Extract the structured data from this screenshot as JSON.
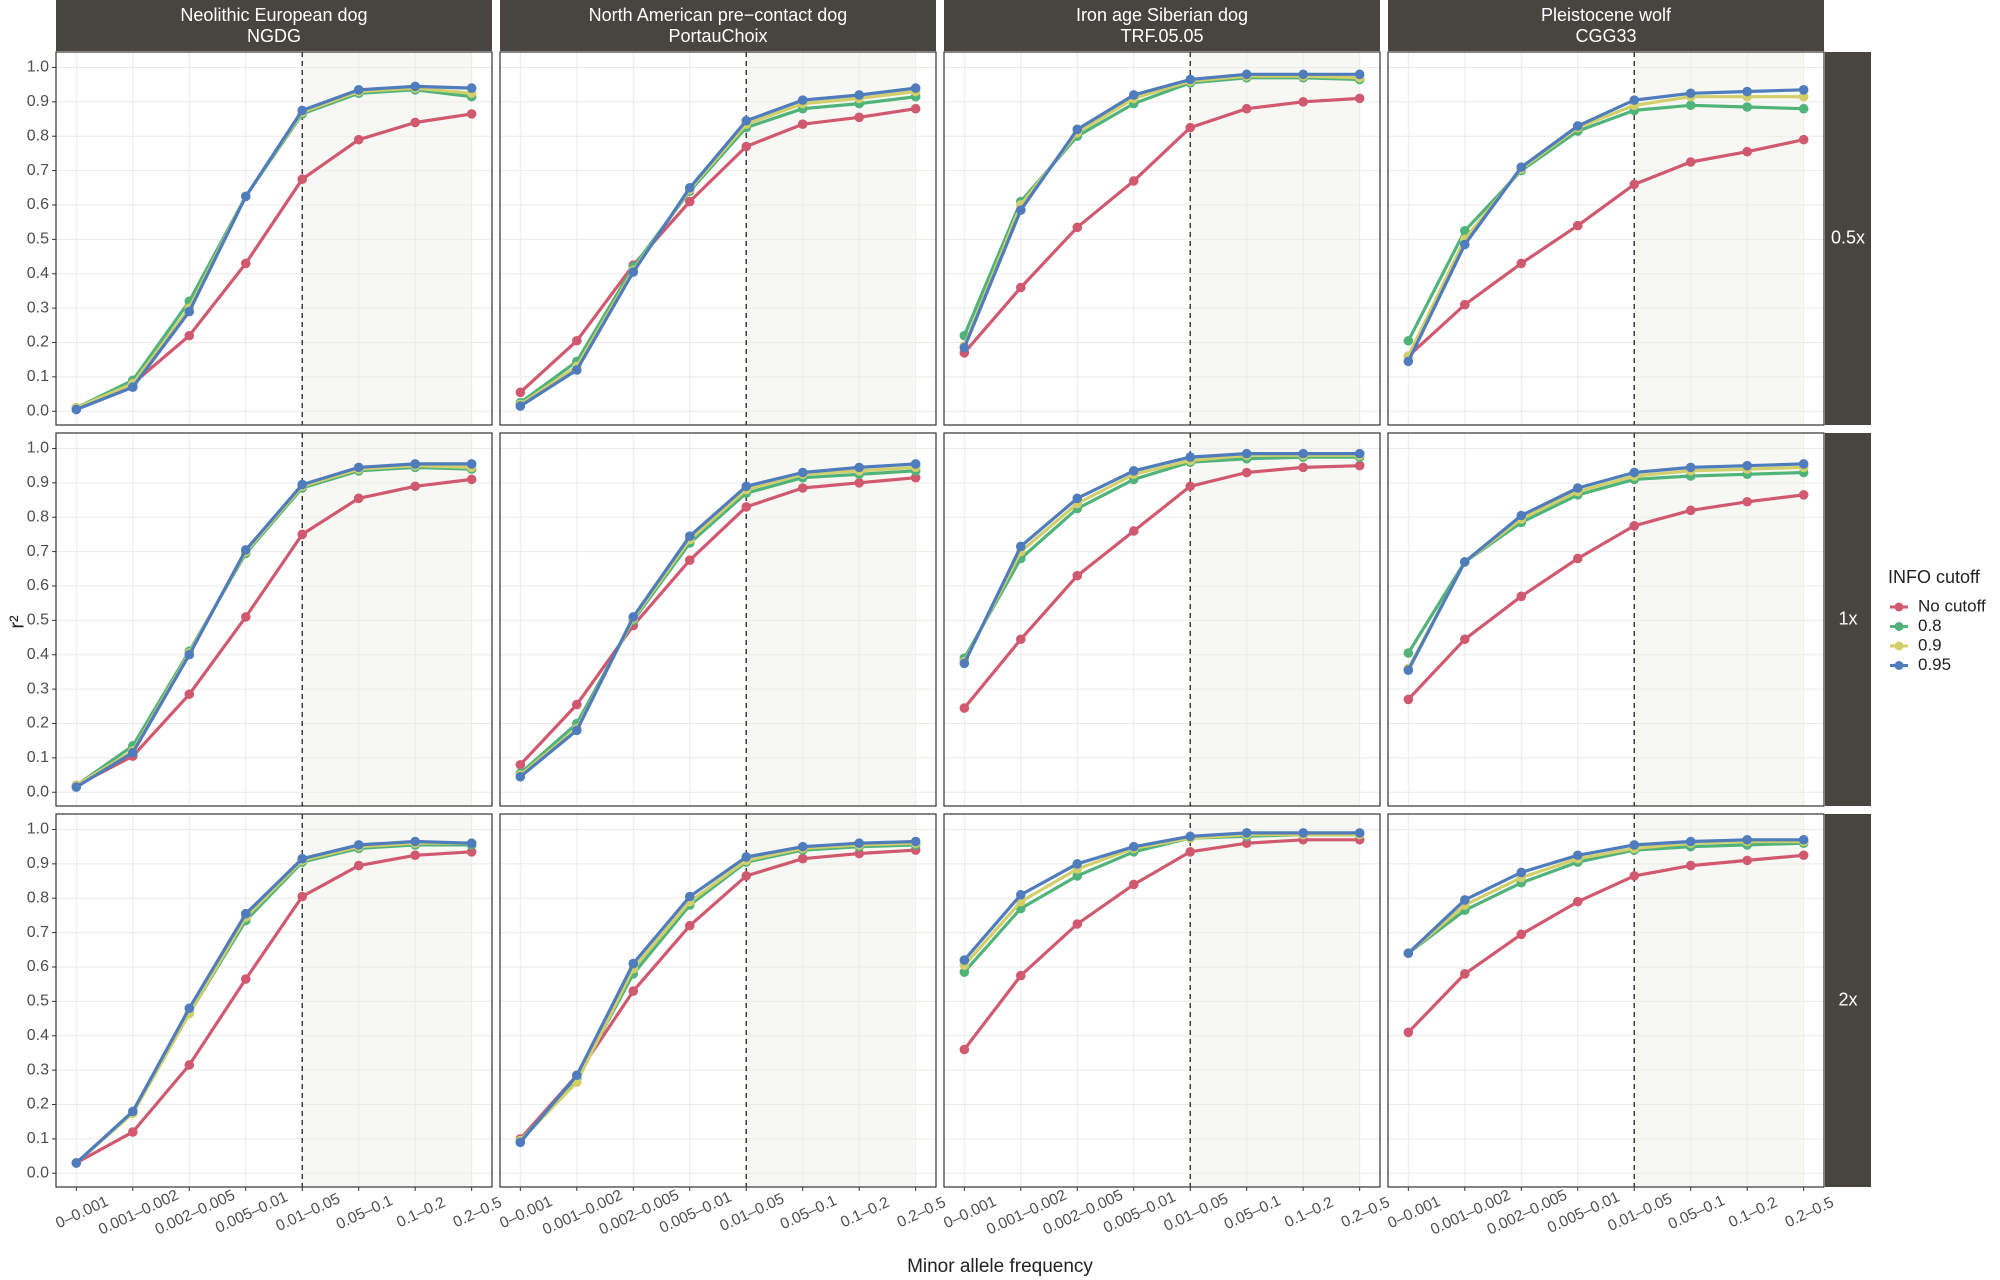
{
  "chart_data": {
    "type": "line",
    "x_label": "Minor allele frequency",
    "y_label": "r²",
    "legend_title": "INFO cutoff",
    "categories": [
      "0–0.001",
      "0.001–0.002",
      "0.002–0.005",
      "0.005–0.01",
      "0.01–0.05",
      "0.05–0.1",
      "0.1–0.2",
      "0.2–0.5"
    ],
    "ylim": [
      -0.04,
      1.045
    ],
    "yticks": [
      {
        "value": 0,
        "label": "0.0"
      },
      0.1,
      0.2,
      0.3,
      0.4,
      0.5,
      0.6,
      0.7,
      0.8,
      0.9,
      {
        "value": 1,
        "label": "1.0"
      }
    ],
    "grid": true,
    "series": [
      {
        "name": "No cutoff",
        "color": "#d1596f"
      },
      {
        "name": "0.8",
        "color": "#4fb37a"
      },
      {
        "name": "0.9",
        "color": "#d2cf6a"
      },
      {
        "name": "0.95",
        "color": "#4f7cbc"
      }
    ],
    "columns": [
      {
        "title": "Neolithic European dog",
        "subtitle": "NGDG"
      },
      {
        "title": "North American pre−contact dog",
        "subtitle": "PortauChoix"
      },
      {
        "title": "Iron age Siberian dog",
        "subtitle": "TRF.05.05"
      },
      {
        "title": "Pleistocene wolf",
        "subtitle": "CGG33"
      }
    ],
    "rows": [
      {
        "label": "0.5x",
        "panels": [
          {
            "series": [
              {
                "values": [
                  0.01,
                  0.08,
                  0.22,
                  0.43,
                  0.675,
                  0.79,
                  0.84,
                  0.865
                ]
              },
              {
                "values": [
                  0.01,
                  0.09,
                  0.32,
                  0.625,
                  0.865,
                  0.925,
                  0.935,
                  0.915
                ]
              },
              {
                "values": [
                  0.01,
                  0.08,
                  0.3,
                  0.625,
                  0.87,
                  0.93,
                  0.94,
                  0.925
                ]
              },
              {
                "values": [
                  0.005,
                  0.07,
                  0.29,
                  0.625,
                  0.875,
                  0.935,
                  0.945,
                  0.94
                ]
              }
            ]
          },
          {
            "series": [
              {
                "values": [
                  0.055,
                  0.205,
                  0.425,
                  0.61,
                  0.77,
                  0.835,
                  0.855,
                  0.88
                ]
              },
              {
                "values": [
                  0.025,
                  0.145,
                  0.42,
                  0.64,
                  0.825,
                  0.88,
                  0.895,
                  0.915
                ]
              },
              {
                "values": [
                  0.02,
                  0.13,
                  0.41,
                  0.645,
                  0.835,
                  0.895,
                  0.91,
                  0.93
                ]
              },
              {
                "values": [
                  0.015,
                  0.12,
                  0.405,
                  0.65,
                  0.845,
                  0.905,
                  0.92,
                  0.94
                ]
              }
            ]
          },
          {
            "series": [
              {
                "values": [
                  0.17,
                  0.36,
                  0.535,
                  0.67,
                  0.825,
                  0.88,
                  0.9,
                  0.91
                ]
              },
              {
                "values": [
                  0.22,
                  0.61,
                  0.8,
                  0.895,
                  0.955,
                  0.97,
                  0.97,
                  0.965
                ]
              },
              {
                "values": [
                  0.19,
                  0.6,
                  0.81,
                  0.91,
                  0.96,
                  0.975,
                  0.975,
                  0.97
                ]
              },
              {
                "values": [
                  0.185,
                  0.585,
                  0.82,
                  0.92,
                  0.965,
                  0.98,
                  0.98,
                  0.98
                ]
              }
            ]
          },
          {
            "series": [
              {
                "values": [
                  0.16,
                  0.31,
                  0.43,
                  0.54,
                  0.66,
                  0.725,
                  0.755,
                  0.79
                ]
              },
              {
                "values": [
                  0.205,
                  0.525,
                  0.7,
                  0.815,
                  0.875,
                  0.89,
                  0.885,
                  0.88
                ]
              },
              {
                "values": [
                  0.16,
                  0.5,
                  0.705,
                  0.825,
                  0.89,
                  0.915,
                  0.915,
                  0.915
                ]
              },
              {
                "values": [
                  0.145,
                  0.485,
                  0.71,
                  0.83,
                  0.905,
                  0.925,
                  0.93,
                  0.935
                ]
              }
            ]
          }
        ]
      },
      {
        "label": "1x",
        "panels": [
          {
            "series": [
              {
                "values": [
                  0.02,
                  0.105,
                  0.285,
                  0.51,
                  0.75,
                  0.855,
                  0.89,
                  0.91
                ]
              },
              {
                "values": [
                  0.02,
                  0.135,
                  0.41,
                  0.695,
                  0.885,
                  0.935,
                  0.945,
                  0.94
                ]
              },
              {
                "values": [
                  0.02,
                  0.12,
                  0.405,
                  0.7,
                  0.89,
                  0.94,
                  0.95,
                  0.945
                ]
              },
              {
                "values": [
                  0.015,
                  0.115,
                  0.4,
                  0.705,
                  0.895,
                  0.945,
                  0.955,
                  0.955
                ]
              }
            ]
          },
          {
            "series": [
              {
                "values": [
                  0.08,
                  0.255,
                  0.485,
                  0.675,
                  0.83,
                  0.885,
                  0.9,
                  0.915
                ]
              },
              {
                "values": [
                  0.055,
                  0.2,
                  0.5,
                  0.725,
                  0.87,
                  0.915,
                  0.925,
                  0.935
                ]
              },
              {
                "values": [
                  0.05,
                  0.185,
                  0.505,
                  0.735,
                  0.88,
                  0.925,
                  0.935,
                  0.945
                ]
              },
              {
                "values": [
                  0.045,
                  0.18,
                  0.51,
                  0.745,
                  0.89,
                  0.93,
                  0.945,
                  0.955
                ]
              }
            ]
          },
          {
            "series": [
              {
                "values": [
                  0.245,
                  0.445,
                  0.63,
                  0.76,
                  0.89,
                  0.93,
                  0.945,
                  0.95
                ]
              },
              {
                "values": [
                  0.39,
                  0.68,
                  0.825,
                  0.91,
                  0.96,
                  0.97,
                  0.975,
                  0.975
                ]
              },
              {
                "values": [
                  0.38,
                  0.7,
                  0.84,
                  0.925,
                  0.965,
                  0.98,
                  0.98,
                  0.98
                ]
              },
              {
                "values": [
                  0.375,
                  0.715,
                  0.855,
                  0.935,
                  0.975,
                  0.985,
                  0.985,
                  0.985
                ]
              }
            ]
          },
          {
            "series": [
              {
                "values": [
                  0.27,
                  0.445,
                  0.57,
                  0.68,
                  0.775,
                  0.82,
                  0.845,
                  0.865
                ]
              },
              {
                "values": [
                  0.405,
                  0.67,
                  0.785,
                  0.865,
                  0.91,
                  0.92,
                  0.925,
                  0.93
                ]
              },
              {
                "values": [
                  0.36,
                  0.67,
                  0.795,
                  0.875,
                  0.92,
                  0.935,
                  0.94,
                  0.945
                ]
              },
              {
                "values": [
                  0.355,
                  0.67,
                  0.805,
                  0.885,
                  0.93,
                  0.945,
                  0.95,
                  0.955
                ]
              }
            ]
          }
        ]
      },
      {
        "label": "2x",
        "panels": [
          {
            "series": [
              {
                "values": [
                  0.03,
                  0.12,
                  0.315,
                  0.565,
                  0.805,
                  0.895,
                  0.925,
                  0.935
                ]
              },
              {
                "values": [
                  0.03,
                  0.175,
                  0.465,
                  0.735,
                  0.905,
                  0.945,
                  0.955,
                  0.955
                ]
              },
              {
                "values": [
                  0.03,
                  0.175,
                  0.465,
                  0.745,
                  0.91,
                  0.95,
                  0.96,
                  0.96
                ]
              },
              {
                "values": [
                  0.03,
                  0.18,
                  0.48,
                  0.755,
                  0.915,
                  0.955,
                  0.965,
                  0.96
                ]
              }
            ]
          },
          {
            "series": [
              {
                "values": [
                  0.1,
                  0.285,
                  0.53,
                  0.72,
                  0.865,
                  0.915,
                  0.93,
                  0.94
                ]
              },
              {
                "values": [
                  0.095,
                  0.275,
                  0.58,
                  0.78,
                  0.905,
                  0.94,
                  0.95,
                  0.955
                ]
              },
              {
                "values": [
                  0.095,
                  0.265,
                  0.595,
                  0.79,
                  0.91,
                  0.945,
                  0.955,
                  0.96
                ]
              },
              {
                "values": [
                  0.09,
                  0.285,
                  0.61,
                  0.805,
                  0.92,
                  0.95,
                  0.96,
                  0.965
                ]
              }
            ]
          },
          {
            "series": [
              {
                "values": [
                  0.36,
                  0.575,
                  0.725,
                  0.84,
                  0.935,
                  0.96,
                  0.97,
                  0.97
                ]
              },
              {
                "values": [
                  0.585,
                  0.77,
                  0.865,
                  0.935,
                  0.975,
                  0.98,
                  0.985,
                  0.985
                ]
              },
              {
                "values": [
                  0.605,
                  0.79,
                  0.885,
                  0.945,
                  0.975,
                  0.985,
                  0.985,
                  0.985
                ]
              },
              {
                "values": [
                  0.62,
                  0.81,
                  0.9,
                  0.95,
                  0.98,
                  0.99,
                  0.99,
                  0.99
                ]
              }
            ]
          },
          {
            "series": [
              {
                "values": [
                  0.41,
                  0.58,
                  0.695,
                  0.79,
                  0.865,
                  0.895,
                  0.91,
                  0.925
                ]
              },
              {
                "values": [
                  0.64,
                  0.765,
                  0.845,
                  0.905,
                  0.94,
                  0.95,
                  0.955,
                  0.96
                ]
              },
              {
                "values": [
                  0.64,
                  0.78,
                  0.86,
                  0.915,
                  0.945,
                  0.96,
                  0.965,
                  0.965
                ]
              },
              {
                "values": [
                  0.64,
                  0.795,
                  0.875,
                  0.925,
                  0.955,
                  0.965,
                  0.97,
                  0.97
                ]
              }
            ]
          }
        ]
      }
    ]
  }
}
